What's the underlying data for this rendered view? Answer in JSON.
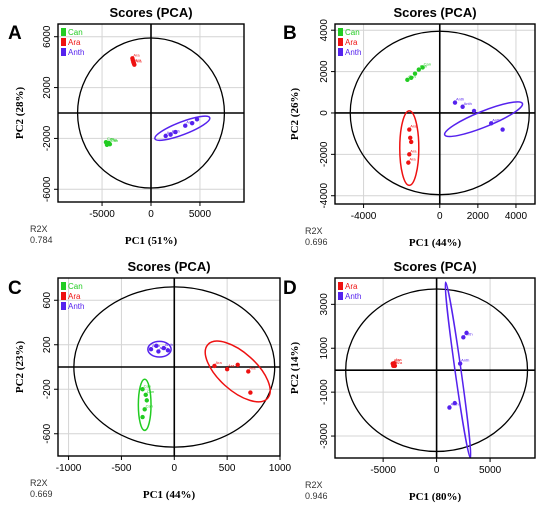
{
  "colors": {
    "Can": "#22cc22",
    "Ara": "#ee1111",
    "Anth": "#5522ee"
  },
  "chart_data": [
    {
      "panel": "A",
      "type": "scatter",
      "title": "Scores (PCA)",
      "xlabel": "PC1 (51%)",
      "ylabel": "PC2 (28%)",
      "r2x_label": "R2X",
      "r2x_value": "0.784",
      "xlim": [
        -9500,
        9500
      ],
      "ylim": [
        -7000,
        7000
      ],
      "xticks": [
        -5000,
        0,
        5000
      ],
      "yticks": [
        -6000,
        -2000,
        2000,
        6000
      ],
      "ellipse_center": [
        0,
        0
      ],
      "ellipse_radii": [
        7500,
        5900
      ],
      "legend": [
        "Can",
        "Ara",
        "Anth"
      ],
      "groups": [
        {
          "name": "Can",
          "cx": -4400,
          "cy": -2400,
          "points": [
            [
              -4600,
              -2300
            ],
            [
              -4400,
              -2400
            ],
            [
              -4200,
              -2450
            ],
            [
              -4500,
              -2500
            ],
            [
              -4300,
              -2350
            ]
          ]
        },
        {
          "name": "Ara",
          "cx": -1800,
          "cy": 4000,
          "points": [
            [
              -1900,
              4300
            ],
            [
              -1800,
              4000
            ],
            [
              -1700,
              3800
            ],
            [
              -1850,
              4150
            ],
            [
              -1750,
              3900
            ]
          ]
        },
        {
          "name": "Anth",
          "cx": 3200,
          "cy": -1200,
          "points": [
            [
              1500,
              -1800
            ],
            [
              2500,
              -1500
            ],
            [
              3500,
              -1000
            ],
            [
              4700,
              -500
            ],
            [
              2000,
              -1700
            ],
            [
              4200,
              -800
            ]
          ],
          "ellipse": {
            "cx": 3200,
            "cy": -1200,
            "rx": 3000,
            "ry": 500,
            "angle": 21
          }
        }
      ]
    },
    {
      "panel": "B",
      "type": "scatter",
      "title": "Scores (PCA)",
      "xlabel": "PC1 (44%)",
      "ylabel": "PC2 (26%)",
      "r2x_label": "R2X",
      "r2x_value": "0.696",
      "xlim": [
        -5500,
        5000
      ],
      "ylim": [
        -4400,
        4300
      ],
      "xticks": [
        -4000,
        0,
        2000,
        4000
      ],
      "yticks": [
        -4000,
        -2000,
        0,
        2000,
        4000
      ],
      "ellipse_center": [
        0,
        0
      ],
      "ellipse_radii": [
        4700,
        3950
      ],
      "legend": [
        "Can",
        "Ara",
        "Anth"
      ],
      "groups": [
        {
          "name": "Can",
          "cx": -1300,
          "cy": 1900,
          "points": [
            [
              -1700,
              1600
            ],
            [
              -1300,
              1900
            ],
            [
              -900,
              2200
            ],
            [
              -1500,
              1700
            ],
            [
              -1100,
              2100
            ]
          ]
        },
        {
          "name": "Ara",
          "cx": -1600,
          "cy": -1700,
          "points": [
            [
              -1600,
              -800
            ],
            [
              -1500,
              -1400
            ],
            [
              -1600,
              -2000
            ],
            [
              -1550,
              -1200
            ],
            [
              -1650,
              -2400
            ]
          ],
          "ellipse": {
            "cx": -1600,
            "cy": -1700,
            "rx": 500,
            "ry": 1800,
            "angle": 0
          }
        },
        {
          "name": "Anth",
          "cx": 2000,
          "cy": -300,
          "points": [
            [
              800,
              500
            ],
            [
              1800,
              100
            ],
            [
              2700,
              -500
            ],
            [
              3300,
              -800
            ],
            [
              1200,
              300
            ]
          ],
          "ellipse": {
            "cx": 2300,
            "cy": -300,
            "rx": 2200,
            "ry": 380,
            "angle": 22
          }
        }
      ]
    },
    {
      "panel": "C",
      "type": "scatter",
      "title": "Scores (PCA)",
      "xlabel": "PC1 (44%)",
      "ylabel": "PC2 (23%)",
      "r2x_label": "R2X",
      "r2x_value": "0.669",
      "xlim": [
        -1100,
        1000
      ],
      "ylim": [
        -800,
        800
      ],
      "xticks": [
        -1000,
        -500,
        0,
        500,
        1000
      ],
      "yticks": [
        -600,
        -200,
        200,
        600
      ],
      "ellipse_center": [
        0,
        0
      ],
      "ellipse_radii": [
        950,
        720
      ],
      "legend": [
        "Can",
        "Ara",
        "Anth"
      ],
      "groups": [
        {
          "name": "Can",
          "cx": -280,
          "cy": -330,
          "points": [
            [
              -300,
              -200
            ],
            [
              -260,
              -300
            ],
            [
              -280,
              -380
            ],
            [
              -300,
              -450
            ],
            [
              -270,
              -250
            ]
          ],
          "ellipse": {
            "cx": -280,
            "cy": -340,
            "rx": 60,
            "ry": 230,
            "angle": 0
          }
        },
        {
          "name": "Anth",
          "cx": -130,
          "cy": 160,
          "points": [
            [
              -220,
              160
            ],
            [
              -170,
              190
            ],
            [
              -100,
              170
            ],
            [
              -60,
              150
            ],
            [
              -150,
              140
            ]
          ],
          "ellipse": {
            "cx": -140,
            "cy": 160,
            "rx": 110,
            "ry": 70,
            "angle": 0
          }
        },
        {
          "name": "Ara",
          "cx": 580,
          "cy": -40,
          "points": [
            [
              380,
              10
            ],
            [
              600,
              20
            ],
            [
              700,
              -40
            ],
            [
              720,
              -230
            ],
            [
              500,
              -20
            ]
          ],
          "ellipse": {
            "cx": 600,
            "cy": -40,
            "rx": 380,
            "ry": 170,
            "angle": -42
          }
        }
      ]
    },
    {
      "panel": "D",
      "type": "scatter",
      "title": "Scores (PCA)",
      "xlabel": "PC1 (80%)",
      "ylabel": "PC2 (14%)",
      "r2x_label": "R2X",
      "r2x_value": "0.946",
      "xlim": [
        -9500,
        9200
      ],
      "ylim": [
        -4000,
        4200
      ],
      "xticks": [
        -5000,
        0,
        5000
      ],
      "yticks": [
        -3000,
        -1000,
        1000,
        3000
      ],
      "ellipse_center": [
        0,
        0
      ],
      "ellipse_radii": [
        8500,
        3700
      ],
      "legend": [
        "Ara",
        "Anth"
      ],
      "groups": [
        {
          "name": "Ara",
          "cx": -4000,
          "cy": 250,
          "points": [
            [
              -4100,
              300
            ],
            [
              -4000,
              250
            ],
            [
              -3900,
              200
            ],
            [
              -4050,
              200
            ],
            [
              -3950,
              320
            ]
          ]
        },
        {
          "name": "Anth",
          "cx": 2000,
          "cy": 0,
          "points": [
            [
              1200,
              -1700
            ],
            [
              1700,
              -1500
            ],
            [
              2500,
              1500
            ],
            [
              2800,
              1700
            ],
            [
              2200,
              300
            ]
          ],
          "ellipse": {
            "cx": 2000,
            "cy": 0,
            "rx": 280,
            "ry": 4050,
            "angle": 8
          }
        }
      ]
    }
  ]
}
